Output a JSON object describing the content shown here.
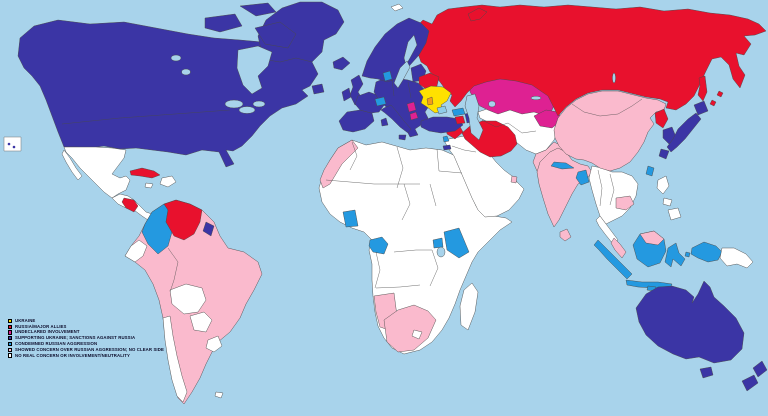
{
  "map": {
    "sea_color": "#A8D3EB",
    "border_color": "#4a4a4a",
    "legend": {
      "categories": [
        {
          "id": "ukraine",
          "label": "UKRAINE",
          "color": "#FFE100"
        },
        {
          "id": "russia",
          "label": "RUSSIA/MAJOR ALLIES",
          "color": "#E8112D"
        },
        {
          "id": "undeclared",
          "label": "UNDECLARED  INVOLVEMENT",
          "color": "#DE2192"
        },
        {
          "id": "support",
          "label": "SUPPORTING UKRAINE; SANCTIONS AGAINST RUSSIA",
          "color": "#3B35A5"
        },
        {
          "id": "condemned",
          "label": "CONDEMNED RUSSIAN AGGRESSION",
          "color": "#2499E0"
        },
        {
          "id": "concern",
          "label": "SHOWED CONCERN OVER RUSSIAN AGGRESSION; NO CLEAR SIDE",
          "color": "#FABACD"
        },
        {
          "id": "neutral",
          "label": "NO REAL CONCERN OR INVOLVEMENT/NEUTRALITY",
          "color": "#FFFFFF"
        }
      ]
    },
    "other_colors": {
      "disputed": "#8FCBE8",
      "orange": "#F59B18"
    }
  }
}
